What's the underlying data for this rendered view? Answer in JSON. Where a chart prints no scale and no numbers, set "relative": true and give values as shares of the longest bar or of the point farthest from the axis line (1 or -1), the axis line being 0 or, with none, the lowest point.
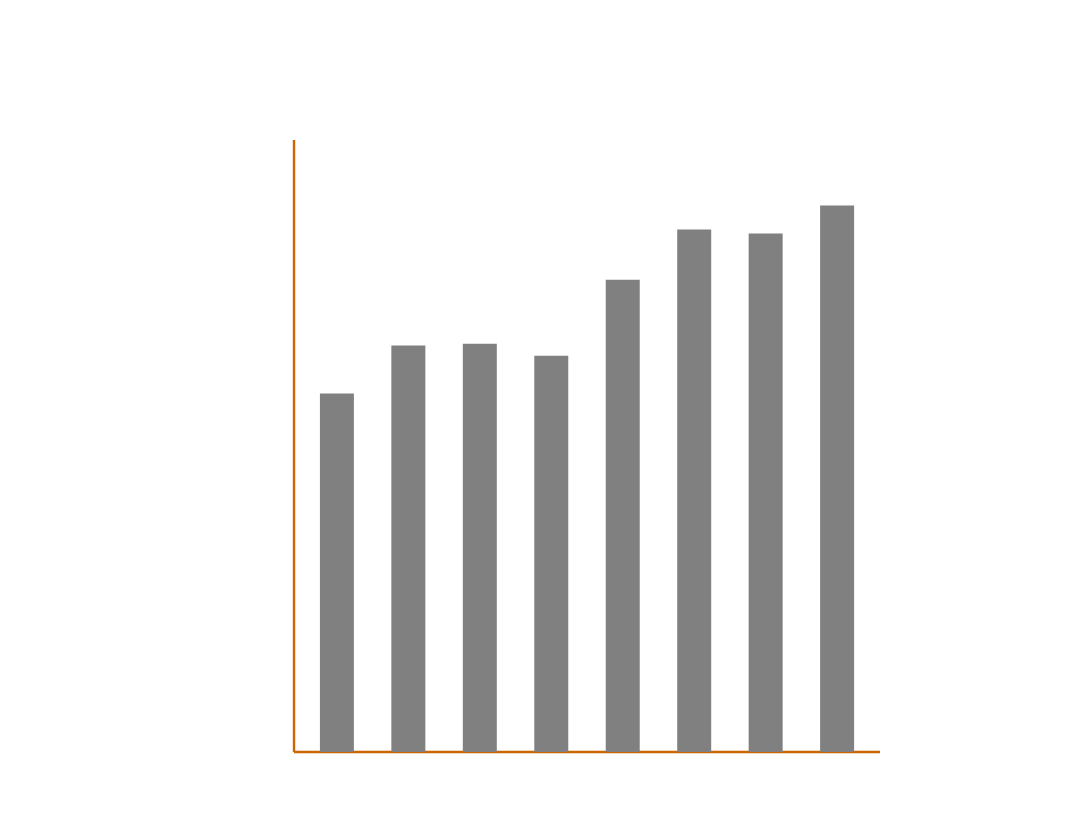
{
  "chart_data": {
    "type": "bar",
    "relative": true,
    "categories": [
      null,
      null,
      null,
      null,
      null,
      null,
      null,
      null
    ],
    "values": [
      0.656,
      0.744,
      0.747,
      0.725,
      0.864,
      0.956,
      0.949,
      1
    ],
    "color": "#808080"
  }
}
